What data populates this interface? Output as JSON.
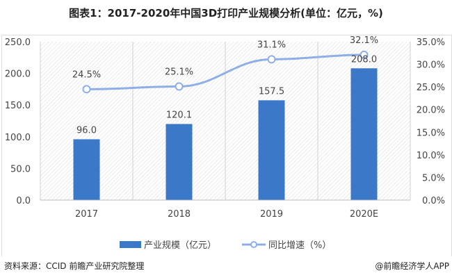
{
  "title": "图表1：2017-2020年中国3D打印产业规模分析(单位：亿元，%)",
  "source": "资料来源：CCID 前瞻产业研究院整理",
  "credit": "@前瞻经济学人APP",
  "chart_data": {
    "type": "bar+line",
    "title": "图表1：2017-2020年中国3D打印产业规模分析(单位：亿元，%)",
    "categories": [
      "2017",
      "2018",
      "2019",
      "2020E"
    ],
    "series": [
      {
        "name": "产业规模（亿元）",
        "type": "bar",
        "axis": "left",
        "values": [
          96.0,
          120.1,
          157.5,
          208.0
        ],
        "labels": [
          "96.0",
          "120.1",
          "157.5",
          "208.0"
        ],
        "color": "#3b78c8"
      },
      {
        "name": "同比增速（%）",
        "type": "line",
        "axis": "right",
        "values": [
          24.5,
          25.1,
          31.1,
          32.1
        ],
        "labels": [
          "24.5%",
          "25.1%",
          "31.1%",
          "32.1%"
        ],
        "color": "#8eaee8"
      }
    ],
    "left_axis": {
      "ylim": [
        0,
        250
      ],
      "ticks": [
        "0.0",
        "50.0",
        "100.0",
        "150.0",
        "200.0",
        "250.0"
      ]
    },
    "right_axis": {
      "ylim": [
        0,
        35
      ],
      "ticks": [
        "0.0%",
        "5.0%",
        "10.0%",
        "15.0%",
        "20.0%",
        "25.0%",
        "30.0%",
        "35.0%"
      ]
    },
    "grid": "vertical",
    "legend": "bottom"
  }
}
